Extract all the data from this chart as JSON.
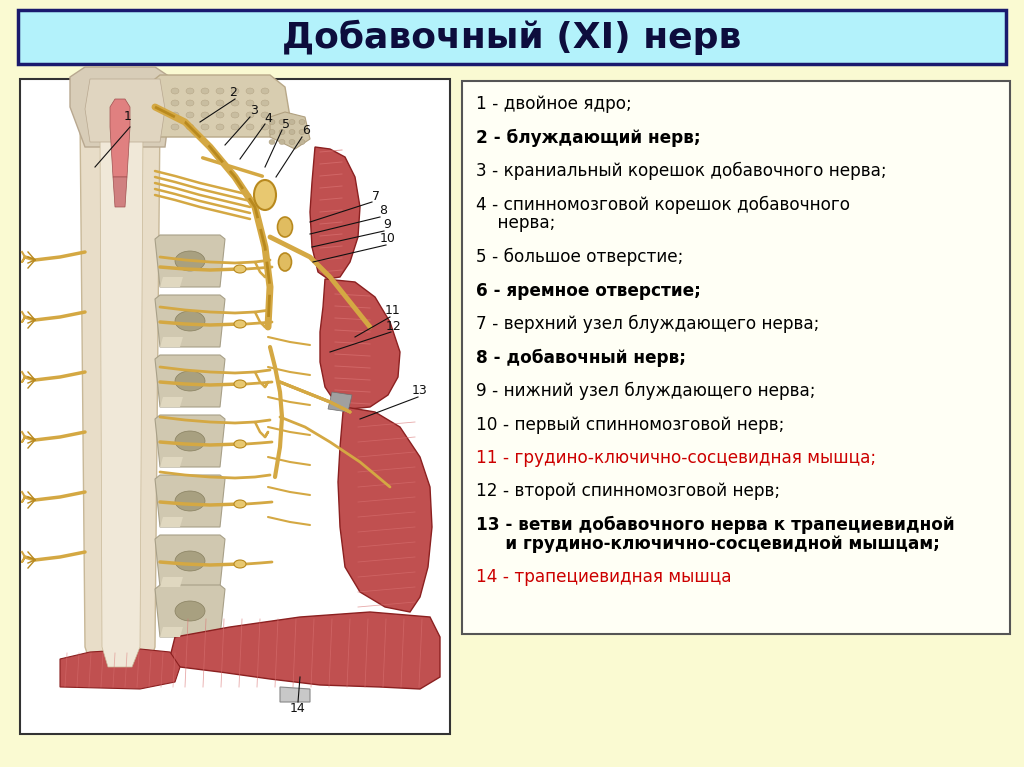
{
  "title": "Добавочный (XI) нерв",
  "title_bg": "#b3f2fb",
  "title_border_color": "#1a1a6e",
  "bg_color": "#fafad2",
  "legend_border_color": "#555555",
  "legend_bg_color": "#fffff5",
  "img_bg_color": "#ffffff",
  "img_border_color": "#333333",
  "bone_color": "#d4c9a0",
  "bone_dark": "#b8a878",
  "nerve_color": "#d4a843",
  "nerve_dark": "#b8891e",
  "muscle_color": "#c05050",
  "muscle_light": "#d87070",
  "muscle_dark": "#8b2020",
  "spinal_cord_color": "#e8ddc8",
  "spinal_cord_border": "#c8b898",
  "pink_accent": "#e08080",
  "legend_items": [
    {
      "num": "1",
      "text": " - двойное ядро;",
      "bold": false,
      "color": "#000000",
      "line2": null
    },
    {
      "num": "2",
      "text": " - блуждающий нерв;",
      "bold": true,
      "color": "#000000",
      "line2": null
    },
    {
      "num": "3",
      "text": " - краниальный корешок добавочного нерва;",
      "bold": false,
      "color": "#000000",
      "line2": null
    },
    {
      "num": "4",
      "text": " - спинномозговой корешок добавочного",
      "bold": false,
      "color": "#000000",
      "line2": "    нерва;"
    },
    {
      "num": "5",
      "text": " - большое отверстие;",
      "bold": false,
      "color": "#000000",
      "line2": null
    },
    {
      "num": "6",
      "text": " - яремное отверстие;",
      "bold": true,
      "color": "#000000",
      "line2": null
    },
    {
      "num": "7",
      "text": " - верхний узел блуждающего нерва;",
      "bold": false,
      "color": "#000000",
      "line2": null
    },
    {
      "num": "8",
      "text": " - добавочный нерв;",
      "bold": true,
      "color": "#000000",
      "line2": null
    },
    {
      "num": "9",
      "text": " - нижний узел блуждающего нерва;",
      "bold": false,
      "color": "#000000",
      "line2": null
    },
    {
      "num": "10",
      "text": " - первый спинномозговой нерв;",
      "bold": false,
      "color": "#000000",
      "line2": null
    },
    {
      "num": "11",
      "text": " - грудино-ключично-сосцевидная мышца;",
      "bold": false,
      "color": "#cc0000",
      "line2": null
    },
    {
      "num": "12",
      "text": " - второй спинномозговой нерв;",
      "bold": false,
      "color": "#000000",
      "line2": null
    },
    {
      "num": "13",
      "text": " - ветви добавочного нерва к трапециевидной",
      "bold": true,
      "color": "#000000",
      "line2": "     и грудино-ключично-сосцевидной мышцам;"
    },
    {
      "num": "14",
      "text": " - трапециевидная мышца",
      "bold": false,
      "color": "#cc0000",
      "line2": null
    }
  ],
  "fig_width": 10.24,
  "fig_height": 7.67
}
